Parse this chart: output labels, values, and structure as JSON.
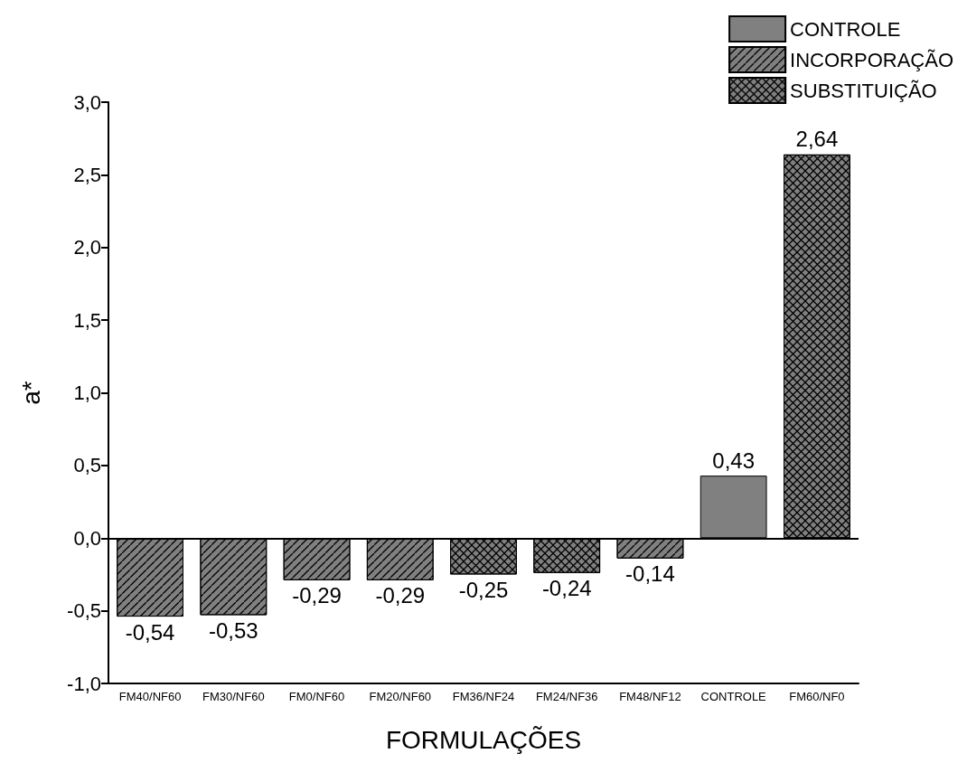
{
  "chart_data": {
    "type": "bar",
    "xlabel": "FORMULAÇÕES",
    "ylabel": "a*",
    "categories": [
      "FM40/NF60",
      "FM30/NF60",
      "FM0/NF60",
      "FM20/NF60",
      "FM36/NF24",
      "FM24/NF36",
      "FM48/NF12",
      "CONTROLE",
      "FM60/NF0"
    ],
    "series": [
      {
        "name": "CONTROLE",
        "color": "#808080",
        "values": [
          null,
          null,
          null,
          null,
          null,
          null,
          null,
          0.43,
          null
        ],
        "value_labels": [
          null,
          null,
          null,
          null,
          null,
          null,
          null,
          "0,43",
          null
        ]
      },
      {
        "name": "INCORPORAÇÃO",
        "color": "#808080",
        "values": [
          -0.54,
          -0.53,
          -0.29,
          -0.29,
          null,
          null,
          -0.14,
          null,
          null
        ],
        "value_labels": [
          "-0,54",
          "-0,53",
          "-0,29",
          "-0,29",
          null,
          null,
          "-0,14",
          null,
          null
        ]
      },
      {
        "name": "SUBSTITUIÇÃO",
        "color": "#808080",
        "values": [
          null,
          null,
          null,
          null,
          -0.25,
          -0.24,
          null,
          null,
          2.64
        ],
        "value_labels": [
          null,
          null,
          null,
          null,
          "-0,25",
          "-0,24",
          null,
          null,
          "2,64"
        ]
      }
    ],
    "ylim": [
      -1.0,
      3.0
    ],
    "yticks": [
      {
        "value": -1.0,
        "label": "-1,0"
      },
      {
        "value": -0.5,
        "label": "-0,5"
      },
      {
        "value": 0,
        "label": "0,0"
      },
      {
        "value": 0.5,
        "label": "0,5"
      },
      {
        "value": 1.0,
        "label": "1,0"
      },
      {
        "value": 1.5,
        "label": "1,5"
      },
      {
        "value": 2.0,
        "label": "2,0"
      },
      {
        "value": 2.5,
        "label": "2,5"
      },
      {
        "value": 3.0,
        "label": "3,0"
      }
    ],
    "ref_lines": [
      {
        "axis": "y",
        "value": 0,
        "color": "#000000"
      }
    ],
    "grid": false,
    "legend": "top right"
  }
}
